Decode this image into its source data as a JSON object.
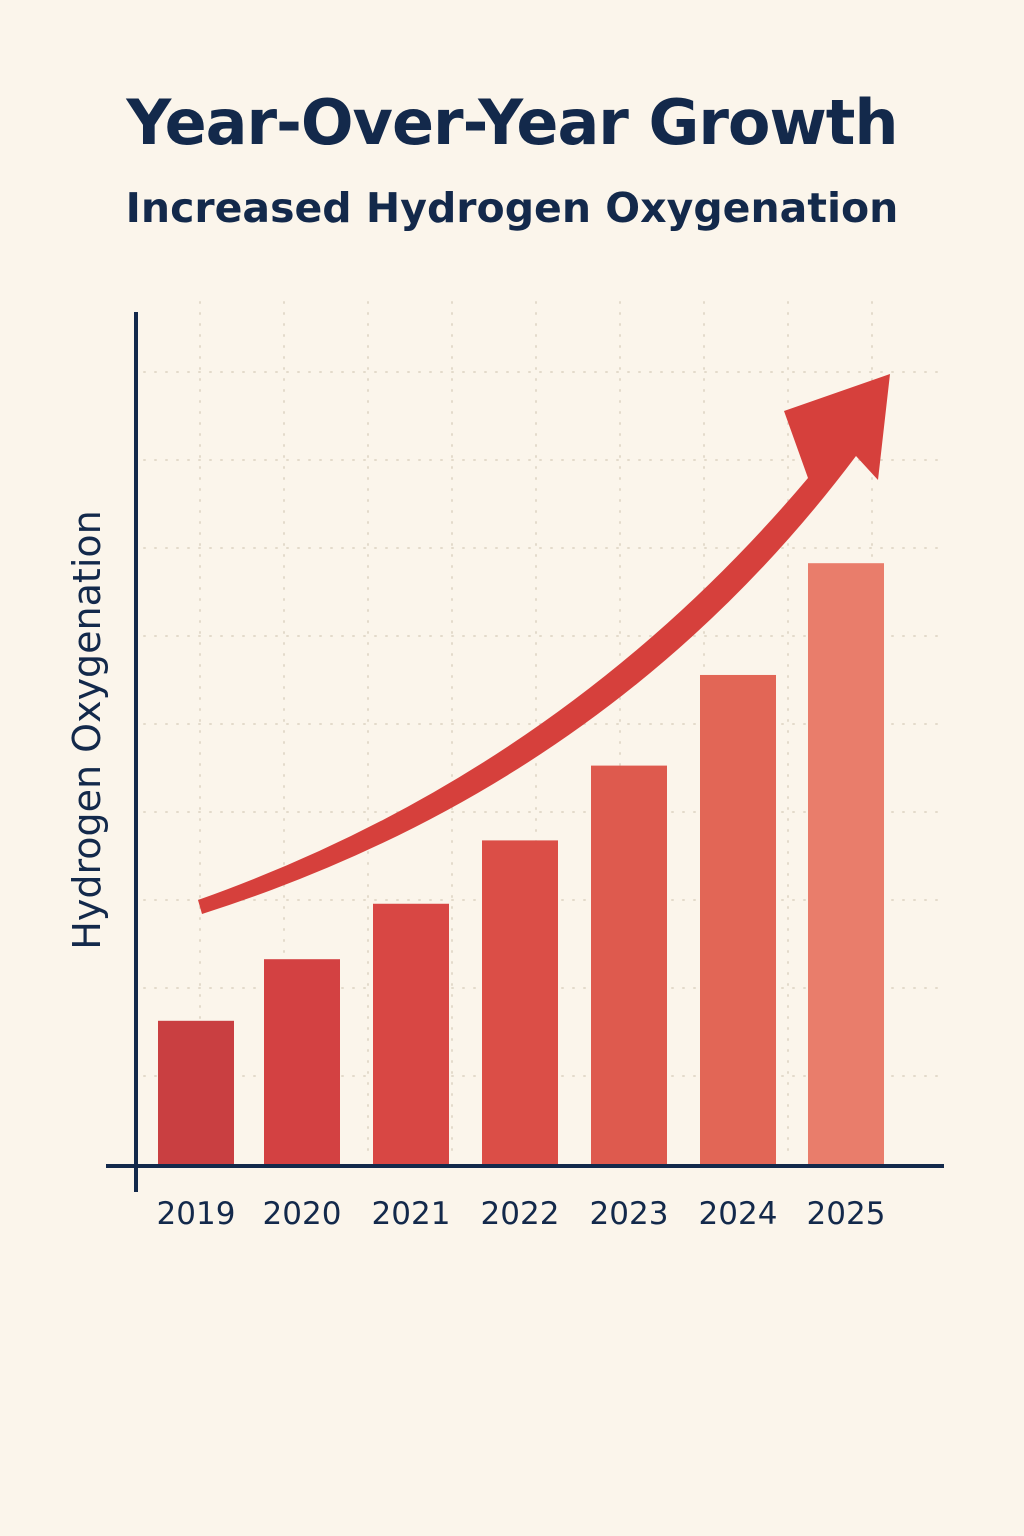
{
  "header": {
    "title": "Year-Over-Year Growth",
    "subtitle": "Increased Hydrogen Oxygenation"
  },
  "colors": {
    "background": "#FBF5EB",
    "text": "#13294B",
    "axis": "#13294B",
    "grid": "#E3DACB",
    "trend_arrow": "#D6403C",
    "bars": [
      "#C93F41",
      "#D34142",
      "#D84744",
      "#DB4E47",
      "#DE5A4E",
      "#E26656",
      "#E97D6B"
    ]
  },
  "chart_data": {
    "type": "bar",
    "title": "Year-Over-Year Growth",
    "subtitle": "Increased Hydrogen Oxygenation",
    "xlabel": "",
    "ylabel": "Hydrogen Oxygenation",
    "categories": [
      "2019",
      "2020",
      "2021",
      "2022",
      "2023",
      "2024",
      "2025"
    ],
    "values": [
      1.65,
      2.35,
      2.98,
      3.7,
      4.55,
      5.58,
      6.85
    ],
    "ylim": [
      0,
      9.7
    ],
    "grid": true,
    "legend": "none",
    "annotations": [
      {
        "type": "trend-arrow",
        "direction": "up",
        "from": "2019",
        "to": "2025"
      }
    ]
  }
}
